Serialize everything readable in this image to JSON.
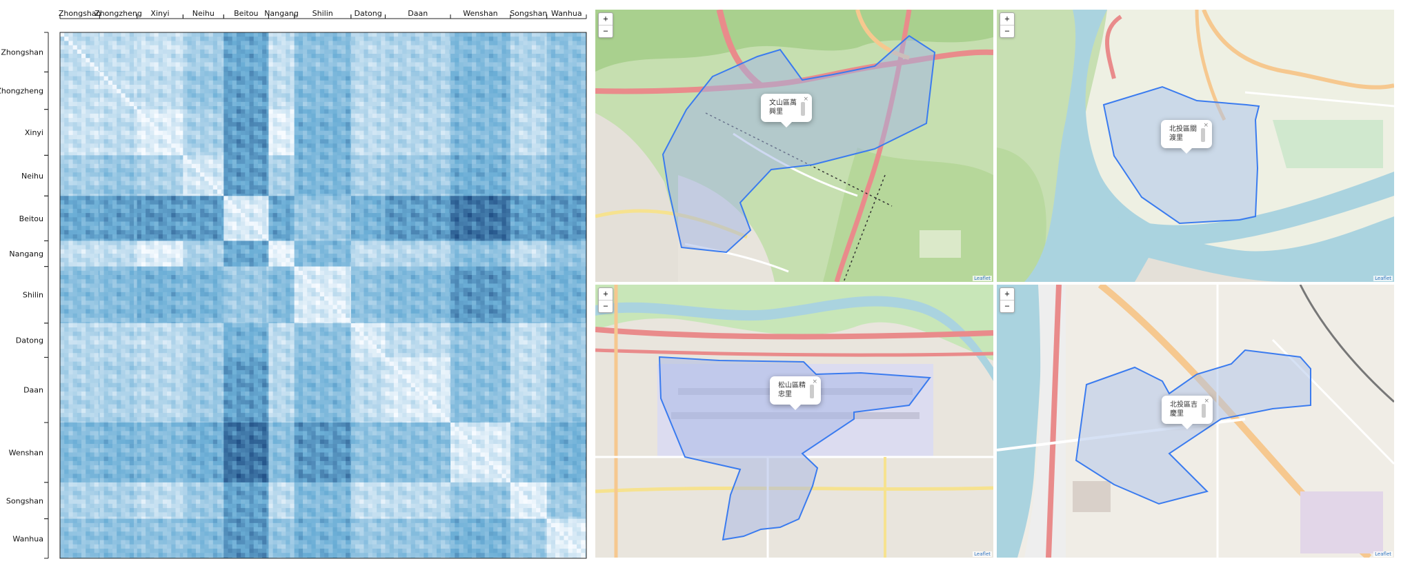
{
  "chart_data": {
    "type": "heatmap",
    "title": "",
    "xlabel": "",
    "ylabel": "",
    "categories": [
      "Zhongshan",
      "Zhongzheng",
      "Xinyi",
      "Neihu",
      "Beitou",
      "Nangang",
      "Shilin",
      "Datong",
      "Daan",
      "Wenshan",
      "Songshan",
      "Wanhua"
    ],
    "group_sizes": [
      37,
      35,
      43,
      38,
      42,
      24,
      53,
      32,
      61,
      56,
      34,
      37
    ],
    "mean_intensity": [
      [
        0.22,
        0.22,
        0.18,
        0.32,
        0.55,
        0.2,
        0.42,
        0.25,
        0.28,
        0.45,
        0.28,
        0.4
      ],
      [
        0.22,
        0.2,
        0.22,
        0.38,
        0.58,
        0.22,
        0.45,
        0.25,
        0.3,
        0.48,
        0.3,
        0.42
      ],
      [
        0.18,
        0.22,
        0.1,
        0.3,
        0.62,
        0.08,
        0.5,
        0.22,
        0.25,
        0.45,
        0.22,
        0.4
      ],
      [
        0.32,
        0.38,
        0.3,
        0.15,
        0.6,
        0.3,
        0.48,
        0.3,
        0.35,
        0.52,
        0.35,
        0.45
      ],
      [
        0.55,
        0.58,
        0.62,
        0.6,
        0.12,
        0.55,
        0.35,
        0.5,
        0.6,
        0.75,
        0.58,
        0.62
      ],
      [
        0.2,
        0.22,
        0.08,
        0.3,
        0.55,
        0.08,
        0.45,
        0.22,
        0.25,
        0.42,
        0.22,
        0.38
      ],
      [
        0.42,
        0.45,
        0.5,
        0.48,
        0.35,
        0.45,
        0.12,
        0.4,
        0.45,
        0.62,
        0.45,
        0.5
      ],
      [
        0.25,
        0.25,
        0.22,
        0.3,
        0.5,
        0.22,
        0.4,
        0.12,
        0.22,
        0.4,
        0.2,
        0.35
      ],
      [
        0.28,
        0.3,
        0.25,
        0.35,
        0.6,
        0.25,
        0.45,
        0.22,
        0.12,
        0.42,
        0.22,
        0.38
      ],
      [
        0.45,
        0.48,
        0.45,
        0.52,
        0.75,
        0.42,
        0.62,
        0.4,
        0.42,
        0.12,
        0.38,
        0.5
      ],
      [
        0.28,
        0.3,
        0.22,
        0.35,
        0.58,
        0.22,
        0.45,
        0.2,
        0.22,
        0.38,
        0.1,
        0.35
      ],
      [
        0.4,
        0.42,
        0.4,
        0.45,
        0.62,
        0.38,
        0.5,
        0.35,
        0.38,
        0.5,
        0.35,
        0.12
      ]
    ],
    "colormap": "Blues",
    "legend": "none"
  },
  "maps": [
    {
      "popup_line1": "文山區萬",
      "popup_line2": "興里",
      "close": "×",
      "fill": "#9fb4e6"
    },
    {
      "popup_line1": "北投區關",
      "popup_line2": "渡里",
      "close": "×",
      "fill": "#a7c2ee"
    },
    {
      "popup_line1": "松山區精",
      "popup_line2": "忠里",
      "close": "×",
      "fill": "#a5b6e6"
    },
    {
      "popup_line1": "北投區吉",
      "popup_line2": "慶里",
      "close": "×",
      "fill": "#aec3ea"
    }
  ],
  "map_controls": {
    "zoom_in": "+",
    "zoom_out": "−",
    "attribution": "Leaflet"
  },
  "colors": {
    "polygon_stroke": "#3a7bef",
    "heatmap_light": "#f7fbff",
    "heatmap_dark": "#08519c"
  }
}
